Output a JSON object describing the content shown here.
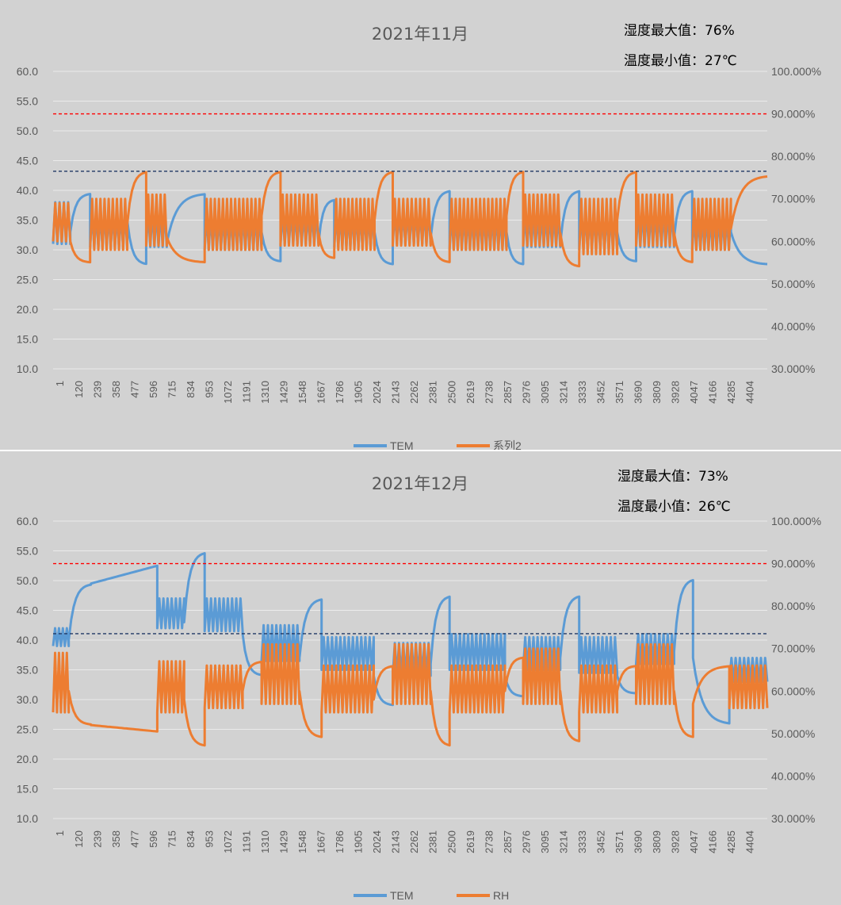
{
  "colors": {
    "tem": "#5b9bd5",
    "rh": "#ed7d31",
    "grid": "#ebebeb",
    "red_ref": "#ff0000",
    "blue_ref": "#1f3864"
  },
  "chart_data": [
    {
      "type": "line",
      "title": "2021年11月",
      "annotations": [
        "湿度最大值：76%",
        "温度最小值：27℃"
      ],
      "x_tick_labels": [
        "1",
        "120",
        "239",
        "358",
        "477",
        "596",
        "715",
        "834",
        "953",
        "1072",
        "1191",
        "1310",
        "1429",
        "1548",
        "1667",
        "1786",
        "1905",
        "2024",
        "2143",
        "2262",
        "2381",
        "2500",
        "2619",
        "2738",
        "2857",
        "2976",
        "3095",
        "3214",
        "3333",
        "3452",
        "3571",
        "3690",
        "3809",
        "3928",
        "4047",
        "4166",
        "4285",
        "4404"
      ],
      "x_range": [
        1,
        4520
      ],
      "y_left": {
        "min": 10,
        "max": 60,
        "step": 5,
        "labels": [
          "10.0",
          "15.0",
          "20.0",
          "25.0",
          "30.0",
          "35.0",
          "40.0",
          "45.0",
          "50.0",
          "55.0",
          "60.0"
        ]
      },
      "y_right": {
        "min": 0.3,
        "max": 1.0,
        "labels": [
          "30.000%",
          "40.000%",
          "50.000%",
          "60.000%",
          "70.000%",
          "80.000%",
          "90.000%",
          "100.000%"
        ]
      },
      "reference_lines": [
        {
          "axis": "right",
          "value": 0.9,
          "color": "red"
        },
        {
          "axis": "right",
          "value": 0.765,
          "color": "navy"
        }
      ],
      "legend": [
        "TEM",
        "系列2"
      ],
      "series": [
        {
          "name": "TEM",
          "axis": "left",
          "segments": [
            {
              "x0": 1,
              "x1": 110,
              "kind": "osc",
              "lo": 31,
              "hi": 38
            },
            {
              "x0": 110,
              "x1": 235,
              "kind": "rise",
              "from": 33,
              "to": 39.5
            },
            {
              "x0": 235,
              "x1": 470,
              "kind": "osc",
              "lo": 30.5,
              "hi": 36
            },
            {
              "x0": 470,
              "x1": 590,
              "kind": "decay",
              "from": 35,
              "to": 27.5
            },
            {
              "x0": 590,
              "x1": 720,
              "kind": "osc",
              "lo": 30.5,
              "hi": 36.5
            },
            {
              "x0": 720,
              "x1": 960,
              "kind": "rise",
              "from": 31,
              "to": 39.5
            },
            {
              "x0": 960,
              "x1": 1320,
              "kind": "osc",
              "lo": 30,
              "hi": 36
            },
            {
              "x0": 1320,
              "x1": 1440,
              "kind": "decay",
              "from": 33,
              "to": 28
            },
            {
              "x0": 1440,
              "x1": 1680,
              "kind": "osc",
              "lo": 31,
              "hi": 36
            },
            {
              "x0": 1680,
              "x1": 1780,
              "kind": "rise",
              "from": 31,
              "to": 38.5
            },
            {
              "x0": 1780,
              "x1": 2035,
              "kind": "osc",
              "lo": 30.5,
              "hi": 36
            },
            {
              "x0": 2035,
              "x1": 2150,
              "kind": "decay",
              "from": 33,
              "to": 27.5
            },
            {
              "x0": 2150,
              "x1": 2390,
              "kind": "osc",
              "lo": 31,
              "hi": 36.5
            },
            {
              "x0": 2390,
              "x1": 2510,
              "kind": "rise",
              "from": 32,
              "to": 40
            },
            {
              "x0": 2510,
              "x1": 2870,
              "kind": "osc",
              "lo": 30,
              "hi": 36
            },
            {
              "x0": 2870,
              "x1": 2975,
              "kind": "decay",
              "from": 33,
              "to": 27.5
            },
            {
              "x0": 2975,
              "x1": 3210,
              "kind": "osc",
              "lo": 30.5,
              "hi": 36
            },
            {
              "x0": 3210,
              "x1": 3330,
              "kind": "rise",
              "from": 31,
              "to": 40
            },
            {
              "x0": 3330,
              "x1": 3570,
              "kind": "osc",
              "lo": 30,
              "hi": 36
            },
            {
              "x0": 3570,
              "x1": 3690,
              "kind": "decay",
              "from": 33,
              "to": 28
            },
            {
              "x0": 3690,
              "x1": 3930,
              "kind": "osc",
              "lo": 30.5,
              "hi": 36.5
            },
            {
              "x0": 3930,
              "x1": 4045,
              "kind": "rise",
              "from": 32,
              "to": 40
            },
            {
              "x0": 4045,
              "x1": 4290,
              "kind": "osc",
              "lo": 30,
              "hi": 35.5
            },
            {
              "x0": 4290,
              "x1": 4520,
              "kind": "decay",
              "from": 33,
              "to": 27.5
            }
          ]
        },
        {
          "name": "系列2",
          "axis": "right",
          "segments": [
            {
              "x0": 1,
              "x1": 110,
              "kind": "osc",
              "lo": 0.6,
              "hi": 0.69
            },
            {
              "x0": 110,
              "x1": 235,
              "kind": "decay",
              "from": 0.6,
              "to": 0.55
            },
            {
              "x0": 235,
              "x1": 470,
              "kind": "osc",
              "lo": 0.58,
              "hi": 0.7
            },
            {
              "x0": 470,
              "x1": 590,
              "kind": "rise",
              "from": 0.64,
              "to": 0.765
            },
            {
              "x0": 590,
              "x1": 720,
              "kind": "osc",
              "lo": 0.59,
              "hi": 0.71
            },
            {
              "x0": 720,
              "x1": 960,
              "kind": "decay",
              "from": 0.61,
              "to": 0.55
            },
            {
              "x0": 960,
              "x1": 1320,
              "kind": "osc",
              "lo": 0.58,
              "hi": 0.7
            },
            {
              "x0": 1320,
              "x1": 1440,
              "kind": "rise",
              "from": 0.66,
              "to": 0.765
            },
            {
              "x0": 1440,
              "x1": 1680,
              "kind": "osc",
              "lo": 0.59,
              "hi": 0.71
            },
            {
              "x0": 1680,
              "x1": 1780,
              "kind": "decay",
              "from": 0.62,
              "to": 0.56
            },
            {
              "x0": 1780,
              "x1": 2035,
              "kind": "osc",
              "lo": 0.58,
              "hi": 0.7
            },
            {
              "x0": 2035,
              "x1": 2150,
              "kind": "rise",
              "from": 0.65,
              "to": 0.765
            },
            {
              "x0": 2150,
              "x1": 2390,
              "kind": "osc",
              "lo": 0.59,
              "hi": 0.7
            },
            {
              "x0": 2390,
              "x1": 2510,
              "kind": "decay",
              "from": 0.62,
              "to": 0.55
            },
            {
              "x0": 2510,
              "x1": 2870,
              "kind": "osc",
              "lo": 0.58,
              "hi": 0.7
            },
            {
              "x0": 2870,
              "x1": 2975,
              "kind": "rise",
              "from": 0.66,
              "to": 0.765
            },
            {
              "x0": 2975,
              "x1": 3210,
              "kind": "osc",
              "lo": 0.59,
              "hi": 0.71
            },
            {
              "x0": 3210,
              "x1": 3330,
              "kind": "decay",
              "from": 0.62,
              "to": 0.54
            },
            {
              "x0": 3330,
              "x1": 3570,
              "kind": "osc",
              "lo": 0.57,
              "hi": 0.7
            },
            {
              "x0": 3570,
              "x1": 3690,
              "kind": "rise",
              "from": 0.65,
              "to": 0.765
            },
            {
              "x0": 3690,
              "x1": 3930,
              "kind": "osc",
              "lo": 0.59,
              "hi": 0.71
            },
            {
              "x0": 3930,
              "x1": 4045,
              "kind": "decay",
              "from": 0.62,
              "to": 0.55
            },
            {
              "x0": 4045,
              "x1": 4290,
              "kind": "osc",
              "lo": 0.58,
              "hi": 0.7
            },
            {
              "x0": 4290,
              "x1": 4520,
              "kind": "rise",
              "from": 0.63,
              "to": 0.755
            }
          ]
        }
      ]
    },
    {
      "type": "line",
      "title": "2021年12月",
      "annotations": [
        "湿度最大值：73%",
        "温度最小值：26℃"
      ],
      "x_tick_labels": [
        "1",
        "120",
        "239",
        "358",
        "477",
        "596",
        "715",
        "834",
        "953",
        "1072",
        "1191",
        "1310",
        "1429",
        "1548",
        "1667",
        "1786",
        "1905",
        "2024",
        "2143",
        "2262",
        "2381",
        "2500",
        "2619",
        "2738",
        "2857",
        "2976",
        "3095",
        "3214",
        "3333",
        "3452",
        "3571",
        "3690",
        "3809",
        "3928",
        "4047",
        "4166",
        "4285",
        "4404"
      ],
      "x_range": [
        1,
        4520
      ],
      "y_left": {
        "min": 10,
        "max": 60,
        "step": 5,
        "labels": [
          "10.0",
          "15.0",
          "20.0",
          "25.0",
          "30.0",
          "35.0",
          "40.0",
          "45.0",
          "50.0",
          "55.0",
          "60.0"
        ]
      },
      "y_right": {
        "min": 0.3,
        "max": 1.0,
        "labels": [
          "30.000%",
          "40.000%",
          "50.000%",
          "60.000%",
          "70.000%",
          "80.000%",
          "90.000%",
          "100.000%"
        ]
      },
      "reference_lines": [
        {
          "axis": "right",
          "value": 0.9,
          "color": "red"
        },
        {
          "axis": "right",
          "value": 0.735,
          "color": "navy"
        }
      ],
      "legend": [
        "TEM",
        "RH"
      ],
      "series": [
        {
          "name": "TEM",
          "axis": "left",
          "segments": [
            {
              "x0": 1,
              "x1": 100,
              "kind": "osc",
              "lo": 39,
              "hi": 42
            },
            {
              "x0": 100,
              "x1": 240,
              "kind": "rise",
              "from": 40,
              "to": 49.5
            },
            {
              "x0": 240,
              "x1": 660,
              "kind": "ramp",
              "from": 49.5,
              "to": 52.5
            },
            {
              "x0": 660,
              "x1": 830,
              "kind": "osc",
              "lo": 42,
              "hi": 47
            },
            {
              "x0": 830,
              "x1": 960,
              "kind": "rise",
              "from": 43,
              "to": 54.8
            },
            {
              "x0": 960,
              "x1": 1200,
              "kind": "osc",
              "lo": 41.5,
              "hi": 47
            },
            {
              "x0": 1200,
              "x1": 1320,
              "kind": "decay",
              "from": 41,
              "to": 34
            },
            {
              "x0": 1320,
              "x1": 1560,
              "kind": "osc",
              "lo": 36.5,
              "hi": 42.5
            },
            {
              "x0": 1560,
              "x1": 1700,
              "kind": "rise",
              "from": 37,
              "to": 47
            },
            {
              "x0": 1700,
              "x1": 2030,
              "kind": "osc",
              "lo": 35,
              "hi": 40.5
            },
            {
              "x0": 2030,
              "x1": 2150,
              "kind": "decay",
              "from": 34,
              "to": 29
            },
            {
              "x0": 2150,
              "x1": 2390,
              "kind": "osc",
              "lo": 34,
              "hi": 39.5
            },
            {
              "x0": 2390,
              "x1": 2510,
              "kind": "rise",
              "from": 36,
              "to": 47.5
            },
            {
              "x0": 2510,
              "x1": 2860,
              "kind": "osc",
              "lo": 35,
              "hi": 41
            },
            {
              "x0": 2860,
              "x1": 2975,
              "kind": "decay",
              "from": 34,
              "to": 30.5
            },
            {
              "x0": 2975,
              "x1": 3210,
              "kind": "osc",
              "lo": 35,
              "hi": 40.5
            },
            {
              "x0": 3210,
              "x1": 3330,
              "kind": "rise",
              "from": 37,
              "to": 47.5
            },
            {
              "x0": 3330,
              "x1": 3570,
              "kind": "osc",
              "lo": 34.5,
              "hi": 40.5
            },
            {
              "x0": 3570,
              "x1": 3690,
              "kind": "decay",
              "from": 34,
              "to": 31
            },
            {
              "x0": 3690,
              "x1": 3930,
              "kind": "osc",
              "lo": 36,
              "hi": 41
            },
            {
              "x0": 3930,
              "x1": 4050,
              "kind": "rise",
              "from": 38,
              "to": 50.3
            },
            {
              "x0": 4050,
              "x1": 4280,
              "kind": "decay",
              "from": 37,
              "to": 25.8
            },
            {
              "x0": 4280,
              "x1": 4520,
              "kind": "osc",
              "lo": 33,
              "hi": 37
            }
          ]
        },
        {
          "name": "RH",
          "axis": "right",
          "segments": [
            {
              "x0": 1,
              "x1": 100,
              "kind": "osc",
              "lo": 0.55,
              "hi": 0.69
            },
            {
              "x0": 100,
              "x1": 240,
              "kind": "decay",
              "from": 0.6,
              "to": 0.52
            },
            {
              "x0": 240,
              "x1": 660,
              "kind": "ramp",
              "from": 0.52,
              "to": 0.505
            },
            {
              "x0": 660,
              "x1": 830,
              "kind": "osc",
              "lo": 0.55,
              "hi": 0.67
            },
            {
              "x0": 830,
              "x1": 960,
              "kind": "decay",
              "from": 0.58,
              "to": 0.47
            },
            {
              "x0": 960,
              "x1": 1200,
              "kind": "osc",
              "lo": 0.56,
              "hi": 0.66
            },
            {
              "x0": 1200,
              "x1": 1320,
              "kind": "rise",
              "from": 0.6,
              "to": 0.67
            },
            {
              "x0": 1320,
              "x1": 1560,
              "kind": "osc",
              "lo": 0.57,
              "hi": 0.71
            },
            {
              "x0": 1560,
              "x1": 1700,
              "kind": "decay",
              "from": 0.6,
              "to": 0.49
            },
            {
              "x0": 1700,
              "x1": 2030,
              "kind": "osc",
              "lo": 0.55,
              "hi": 0.66
            },
            {
              "x0": 2030,
              "x1": 2150,
              "kind": "rise",
              "from": 0.58,
              "to": 0.66
            },
            {
              "x0": 2150,
              "x1": 2390,
              "kind": "osc",
              "lo": 0.57,
              "hi": 0.71
            },
            {
              "x0": 2390,
              "x1": 2510,
              "kind": "decay",
              "from": 0.6,
              "to": 0.47
            },
            {
              "x0": 2510,
              "x1": 2860,
              "kind": "osc",
              "lo": 0.55,
              "hi": 0.66
            },
            {
              "x0": 2860,
              "x1": 2975,
              "kind": "rise",
              "from": 0.6,
              "to": 0.68
            },
            {
              "x0": 2975,
              "x1": 3210,
              "kind": "osc",
              "lo": 0.57,
              "hi": 0.7
            },
            {
              "x0": 3210,
              "x1": 3330,
              "kind": "decay",
              "from": 0.6,
              "to": 0.48
            },
            {
              "x0": 3330,
              "x1": 3570,
              "kind": "osc",
              "lo": 0.55,
              "hi": 0.66
            },
            {
              "x0": 3570,
              "x1": 3690,
              "kind": "rise",
              "from": 0.6,
              "to": 0.66
            },
            {
              "x0": 3690,
              "x1": 3930,
              "kind": "osc",
              "lo": 0.57,
              "hi": 0.71
            },
            {
              "x0": 3930,
              "x1": 4050,
              "kind": "decay",
              "from": 0.6,
              "to": 0.49
            },
            {
              "x0": 4050,
              "x1": 4280,
              "kind": "rise",
              "from": 0.57,
              "to": 0.66
            },
            {
              "x0": 4280,
              "x1": 4520,
              "kind": "osc",
              "lo": 0.56,
              "hi": 0.66
            }
          ]
        }
      ]
    }
  ]
}
